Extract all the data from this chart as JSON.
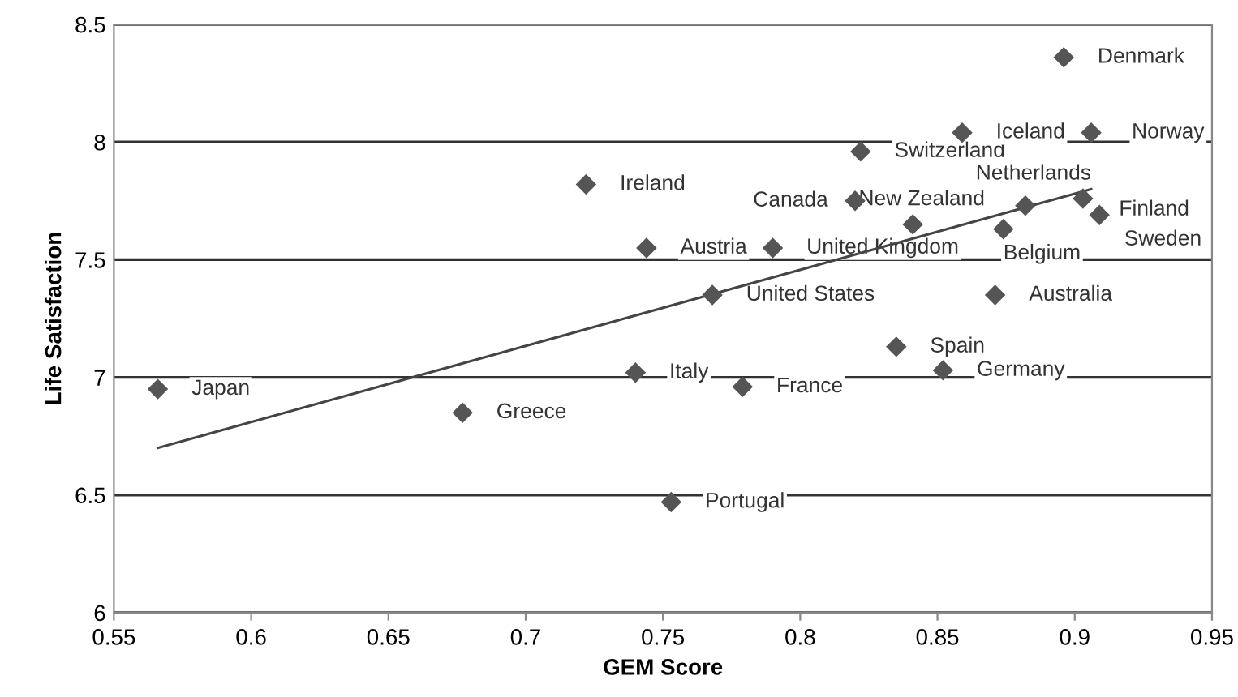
{
  "chart_data": {
    "type": "scatter",
    "xlabel": "GEM Score",
    "ylabel": "Life Satisfaction",
    "xlim": [
      0.55,
      0.95
    ],
    "xticks": [
      0.55,
      0.6,
      0.65,
      0.7,
      0.75,
      0.8,
      0.85,
      0.9,
      0.95
    ],
    "ylim": [
      6,
      8.5
    ],
    "yticks": [
      6,
      6.5,
      7,
      7.5,
      8,
      8.5
    ],
    "grid": "y",
    "marker": "diamond",
    "series": [
      {
        "color": "#555555",
        "x": [
          0.566,
          0.677,
          0.722,
          0.744,
          0.74,
          0.753,
          0.768,
          0.779,
          0.79,
          0.82,
          0.822,
          0.841,
          0.835,
          0.852,
          0.859,
          0.871,
          0.874,
          0.882,
          0.896,
          0.903,
          0.906,
          0.909
        ],
        "values": [
          6.95,
          6.85,
          7.82,
          7.55,
          7.02,
          6.47,
          7.35,
          6.96,
          7.55,
          7.75,
          7.96,
          7.65,
          7.13,
          7.03,
          8.04,
          7.35,
          7.63,
          7.73,
          8.36,
          7.76,
          8.04,
          7.69
        ]
      },
      {
        "type": "line",
        "color": "#444444",
        "marker": "none",
        "x": [
          0.566,
          0.906
        ],
        "values": [
          6.7,
          7.8
        ]
      }
    ],
    "annotations": [
      {
        "text": "Japan",
        "x": 0.566,
        "y": 6.95
      },
      {
        "text": "Greece",
        "x": 0.677,
        "y": 6.85
      },
      {
        "text": "Ireland",
        "x": 0.722,
        "y": 7.82
      },
      {
        "text": "Austria",
        "x": 0.744,
        "y": 7.55
      },
      {
        "text": "Italy",
        "x": 0.74,
        "y": 7.02
      },
      {
        "text": "Portugal",
        "x": 0.753,
        "y": 6.47
      },
      {
        "text": "United States",
        "x": 0.768,
        "y": 7.35
      },
      {
        "text": "France",
        "x": 0.779,
        "y": 6.96
      },
      {
        "text": "United Kingdom",
        "x": 0.79,
        "y": 7.55
      },
      {
        "text": "Canada",
        "x": 0.82,
        "y": 7.75
      },
      {
        "text": "Switzerland",
        "x": 0.822,
        "y": 7.96
      },
      {
        "text": "New Zealand",
        "x": 0.841,
        "y": 7.65
      },
      {
        "text": "Spain",
        "x": 0.835,
        "y": 7.13
      },
      {
        "text": "Germany",
        "x": 0.852,
        "y": 7.03
      },
      {
        "text": "Iceland",
        "x": 0.859,
        "y": 8.04
      },
      {
        "text": "Australia",
        "x": 0.871,
        "y": 7.35
      },
      {
        "text": "Belgium",
        "x": 0.874,
        "y": 7.63
      },
      {
        "text": "Netherlands",
        "x": 0.882,
        "y": 7.73
      },
      {
        "text": "Denmark",
        "x": 0.896,
        "y": 8.36
      },
      {
        "text": "Finland",
        "x": 0.903,
        "y": 7.76
      },
      {
        "text": "Norway",
        "x": 0.906,
        "y": 8.04
      },
      {
        "text": "Sweden",
        "x": 0.909,
        "y": 7.69
      }
    ]
  }
}
